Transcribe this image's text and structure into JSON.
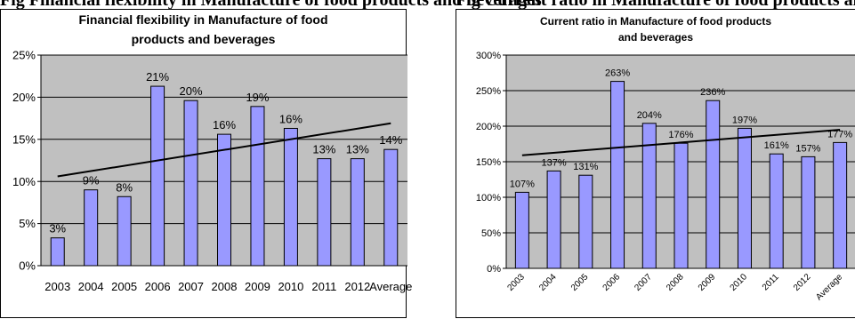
{
  "banner": {
    "left_text": "Fig                                    Financial flexibility in Manufacture of food products and beverages",
    "right_text": "Fig                                Current ratio in Manufacture of food products and beverages"
  },
  "colors": {
    "bar_fill": "#9999FF",
    "bar_stroke": "#000000",
    "plot_bg": "#C0C0C0",
    "trend_line": "#000000"
  },
  "chart_data": [
    {
      "type": "bar",
      "title_lines": [
        "Financial flexibility in Manufacture of food",
        "products and beverages"
      ],
      "xlabel": "",
      "ylabel": "",
      "categories": [
        "2003",
        "2004",
        "2005",
        "2006",
        "2007",
        "2008",
        "2009",
        "2010",
        "2011",
        "2012",
        "Average"
      ],
      "values": [
        3.3,
        9.0,
        8.2,
        21.3,
        19.6,
        15.6,
        18.9,
        16.3,
        12.7,
        12.7,
        13.8
      ],
      "data_labels": [
        "3%",
        "9%",
        "8%",
        "21%",
        "20%",
        "16%",
        "19%",
        "16%",
        "13%",
        "13%",
        "14%"
      ],
      "ylim": [
        0,
        25
      ],
      "yticks": [
        "0%",
        "5%",
        "10%",
        "15%",
        "20%",
        "25%"
      ],
      "trendline": [
        10.6,
        16.9
      ],
      "grid": true,
      "legend": "none"
    },
    {
      "type": "bar",
      "title_lines": [
        "Current ratio in Manufacture of food products",
        "and beverages"
      ],
      "xlabel": "",
      "ylabel": "",
      "categories": [
        "2003",
        "2004",
        "2005",
        "2006",
        "2007",
        "2008",
        "2009",
        "2010",
        "2011",
        "2012",
        "Average"
      ],
      "values": [
        107,
        137,
        131,
        263,
        204,
        176,
        236,
        197,
        161,
        157,
        177
      ],
      "data_labels": [
        "107%",
        "137%",
        "131%",
        "263%",
        "204%",
        "176%",
        "236%",
        "197%",
        "161%",
        "157%",
        "177%"
      ],
      "ylim": [
        0,
        300
      ],
      "yticks": [
        "0%",
        "50%",
        "100%",
        "150%",
        "200%",
        "250%",
        "300%"
      ],
      "trendline": [
        159,
        195
      ],
      "grid": true,
      "legend": "none"
    }
  ]
}
